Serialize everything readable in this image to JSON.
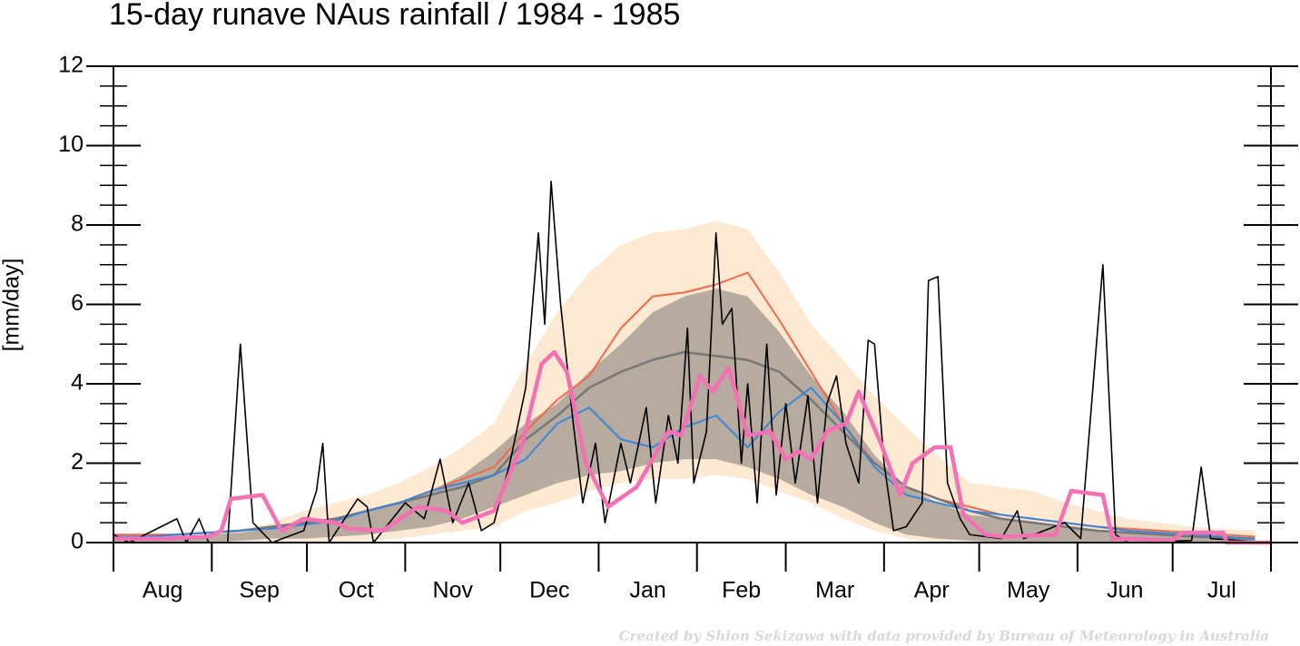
{
  "chart_data": {
    "type": "line",
    "title": "15-day runave NAus rainfall  /  1984 - 1985",
    "y_label": "[mm/day]",
    "credit": "Created by Shion Sekizawa with data provided by Bureau of Meteorology in Australia",
    "xlim": [
      0,
      365
    ],
    "xticks": [
      0,
      31,
      61,
      92,
      122,
      153,
      184,
      212,
      243,
      273,
      304,
      334,
      365
    ],
    "x_labels": [
      "Aug",
      "Sep",
      "Oct",
      "Nov",
      "Dec",
      "Jan",
      "Feb",
      "Mar",
      "Apr",
      "May",
      "Jun",
      "Jul"
    ],
    "ylim": [
      0,
      12
    ],
    "yticks": [
      0,
      2,
      4,
      6,
      8,
      10,
      12
    ],
    "bands": [
      {
        "color": "#fde8d2",
        "x": [
          0,
          10,
          20,
          30,
          40,
          50,
          60,
          70,
          80,
          90,
          100,
          110,
          120,
          130,
          140,
          150,
          160,
          170,
          180,
          190,
          200,
          210,
          220,
          230,
          240,
          250,
          260,
          270,
          280,
          290,
          300,
          310,
          320,
          330,
          340,
          350,
          360
        ],
        "upper": [
          0.15,
          0.15,
          0.15,
          0.2,
          0.3,
          0.5,
          0.8,
          1.0,
          1.2,
          1.5,
          1.9,
          2.4,
          3.0,
          4.5,
          5.8,
          6.8,
          7.5,
          7.8,
          7.9,
          8.1,
          7.9,
          6.8,
          5.5,
          4.6,
          3.7,
          2.9,
          2.2,
          1.5,
          1.4,
          1.3,
          1.0,
          0.8,
          0.6,
          0.5,
          0.4,
          0.35,
          0.3
        ],
        "lower": [
          0,
          0,
          0,
          0,
          0,
          0,
          0,
          0,
          0.05,
          0.1,
          0.2,
          0.3,
          0.4,
          0.8,
          1.0,
          1.3,
          1.5,
          1.6,
          1.6,
          1.7,
          1.6,
          1.3,
          1.0,
          0.6,
          0.3,
          0.1,
          0,
          0,
          0,
          0,
          0,
          0,
          0,
          0,
          0,
          0,
          0
        ]
      },
      {
        "color": "#b7aa9e",
        "x": [
          0,
          10,
          20,
          30,
          40,
          50,
          60,
          70,
          80,
          90,
          100,
          110,
          120,
          130,
          140,
          150,
          160,
          170,
          180,
          190,
          200,
          210,
          220,
          230,
          240,
          250,
          260,
          270,
          280,
          290,
          300,
          310,
          320,
          330,
          340,
          350,
          360
        ],
        "upper": [
          0.1,
          0.1,
          0.15,
          0.2,
          0.25,
          0.35,
          0.5,
          0.6,
          0.8,
          1.0,
          1.3,
          1.7,
          2.3,
          3.0,
          3.5,
          4.3,
          5.0,
          5.8,
          6.2,
          6.4,
          6.2,
          5.3,
          4.2,
          3.3,
          2.2,
          1.4,
          1.0,
          0.7,
          0.6,
          0.5,
          0.4,
          0.3,
          0.25,
          0.2,
          0.15,
          0.1,
          0.1
        ],
        "lower": [
          0,
          0,
          0,
          0,
          0.05,
          0.1,
          0.1,
          0.15,
          0.2,
          0.3,
          0.4,
          0.6,
          0.9,
          1.2,
          1.5,
          1.7,
          1.8,
          2.0,
          2.1,
          2.1,
          1.9,
          1.6,
          1.2,
          0.9,
          0.5,
          0.2,
          0.1,
          0.05,
          0,
          0,
          0,
          0,
          0,
          0,
          0,
          0,
          0
        ]
      }
    ],
    "series": [
      {
        "color": "#f0694a",
        "x": [
          0,
          10,
          20,
          30,
          40,
          50,
          60,
          70,
          80,
          90,
          100,
          110,
          120,
          130,
          140,
          150,
          160,
          170,
          180,
          190,
          200,
          210,
          220,
          230,
          240,
          250,
          260,
          270,
          280,
          290,
          300,
          310,
          320,
          330,
          340,
          350,
          360
        ],
        "values": [
          0.2,
          0.2,
          0.2,
          0.25,
          0.3,
          0.4,
          0.5,
          0.6,
          0.8,
          1.0,
          1.3,
          1.6,
          1.9,
          2.8,
          3.6,
          4.2,
          5.4,
          6.2,
          6.3,
          6.5,
          6.8,
          5.6,
          4.3,
          3.0,
          2.0,
          1.4,
          1.1,
          0.9,
          0.7,
          0.6,
          0.5,
          0.4,
          0.35,
          0.3,
          0.25,
          0.2,
          0.15
        ]
      },
      {
        "color": "#777777",
        "x": [
          0,
          10,
          20,
          30,
          40,
          50,
          60,
          70,
          80,
          90,
          100,
          110,
          120,
          130,
          140,
          150,
          160,
          170,
          180,
          190,
          200,
          210,
          220,
          230,
          240,
          250,
          260,
          270,
          280,
          290,
          300,
          310,
          320,
          330,
          340,
          350,
          360
        ],
        "values": [
          0.15,
          0.15,
          0.2,
          0.25,
          0.3,
          0.4,
          0.5,
          0.6,
          0.8,
          1.0,
          1.2,
          1.4,
          1.7,
          2.6,
          3.2,
          3.9,
          4.3,
          4.6,
          4.8,
          4.7,
          4.6,
          4.3,
          3.6,
          2.8,
          2.0,
          1.4,
          1.1,
          0.8,
          0.6,
          0.5,
          0.4,
          0.3,
          0.25,
          0.2,
          0.15,
          0.12,
          0.1
        ]
      },
      {
        "color": "#3a87d8",
        "x": [
          0,
          10,
          20,
          30,
          40,
          50,
          60,
          70,
          80,
          90,
          100,
          110,
          120,
          130,
          140,
          150,
          160,
          170,
          180,
          190,
          200,
          210,
          220,
          230,
          240,
          250,
          260,
          270,
          280,
          290,
          300,
          310,
          320,
          330,
          340,
          350,
          360
        ],
        "values": [
          0.15,
          0.15,
          0.2,
          0.25,
          0.3,
          0.35,
          0.45,
          0.55,
          0.8,
          1.0,
          1.3,
          1.5,
          1.7,
          2.1,
          3.0,
          3.4,
          2.6,
          2.4,
          2.9,
          3.2,
          2.4,
          3.3,
          3.9,
          3.0,
          1.9,
          1.2,
          1.0,
          0.8,
          0.7,
          0.6,
          0.5,
          0.4,
          0.3,
          0.25,
          0.2,
          0.15,
          0.1
        ]
      },
      {
        "color": "#000000",
        "x": [
          0,
          5,
          20,
          23,
          27,
          30,
          36,
          40,
          44,
          50,
          60,
          64,
          66,
          68,
          77,
          80,
          82,
          92,
          98,
          103,
          107,
          112,
          116,
          120,
          125,
          130,
          134,
          136,
          138,
          141,
          145,
          148,
          152,
          155,
          160,
          163,
          168,
          171,
          175,
          178,
          181,
          183,
          187,
          190,
          192,
          195,
          198,
          200,
          203,
          206,
          209,
          212,
          215,
          219,
          222,
          225,
          228,
          231,
          235,
          238,
          240,
          243,
          246,
          250,
          255,
          257,
          260,
          263,
          267,
          270,
          280,
          285,
          287,
          300,
          305,
          312,
          316,
          320,
          340,
          343,
          346,
          365
        ],
        "values": [
          0.2,
          0,
          0.6,
          0,
          0.6,
          0,
          0,
          5.0,
          0.5,
          0,
          0.3,
          1.3,
          2.5,
          0,
          1.1,
          0.9,
          0,
          1.0,
          0.6,
          2.1,
          0.5,
          1.5,
          0.3,
          0.5,
          2.0,
          3.9,
          7.8,
          5.5,
          9.1,
          6.0,
          3.0,
          1.0,
          2.5,
          0.5,
          2.5,
          1.5,
          3.4,
          1.0,
          3.2,
          2.0,
          5.4,
          1.5,
          2.8,
          7.8,
          5.5,
          5.9,
          2.0,
          4.0,
          1.0,
          5.0,
          1.2,
          3.5,
          1.5,
          3.7,
          1.0,
          3.5,
          4.2,
          2.5,
          1.5,
          5.1,
          5.0,
          2.0,
          0.3,
          0.4,
          1.0,
          6.6,
          6.7,
          1.5,
          0.6,
          0.2,
          0.1,
          0.8,
          0.1,
          0.5,
          0.1,
          7.0,
          0.2,
          0,
          0.05,
          1.9,
          0.1,
          0
        ]
      },
      {
        "color": "#f46fb4",
        "x": [
          0,
          16,
          30,
          34,
          37,
          47,
          53,
          60,
          70,
          74,
          85,
          96,
          105,
          110,
          120,
          129,
          135,
          139,
          143,
          149,
          156,
          165,
          175,
          179,
          185,
          189,
          194,
          200,
          207,
          212,
          216,
          220,
          225,
          231,
          235,
          242,
          248,
          252,
          259,
          264,
          268,
          275,
          280,
          297,
          302,
          312,
          315,
          334,
          337,
          350,
          351,
          365
        ],
        "values": [
          0.1,
          0.1,
          0.15,
          0.3,
          1.1,
          1.2,
          0.3,
          0.6,
          0.5,
          0.35,
          0.3,
          0.9,
          0.8,
          0.5,
          0.8,
          2.5,
          4.5,
          4.8,
          4.3,
          2.0,
          0.9,
          1.4,
          2.8,
          2.7,
          4.2,
          3.8,
          4.4,
          2.7,
          2.8,
          2.1,
          2.3,
          2.1,
          2.8,
          3.0,
          3.8,
          2.5,
          1.2,
          2.0,
          2.4,
          2.4,
          0.7,
          0.2,
          0.15,
          0.2,
          1.3,
          1.2,
          0.1,
          0.05,
          0.25,
          0.25,
          0,
          0
        ]
      }
    ]
  }
}
